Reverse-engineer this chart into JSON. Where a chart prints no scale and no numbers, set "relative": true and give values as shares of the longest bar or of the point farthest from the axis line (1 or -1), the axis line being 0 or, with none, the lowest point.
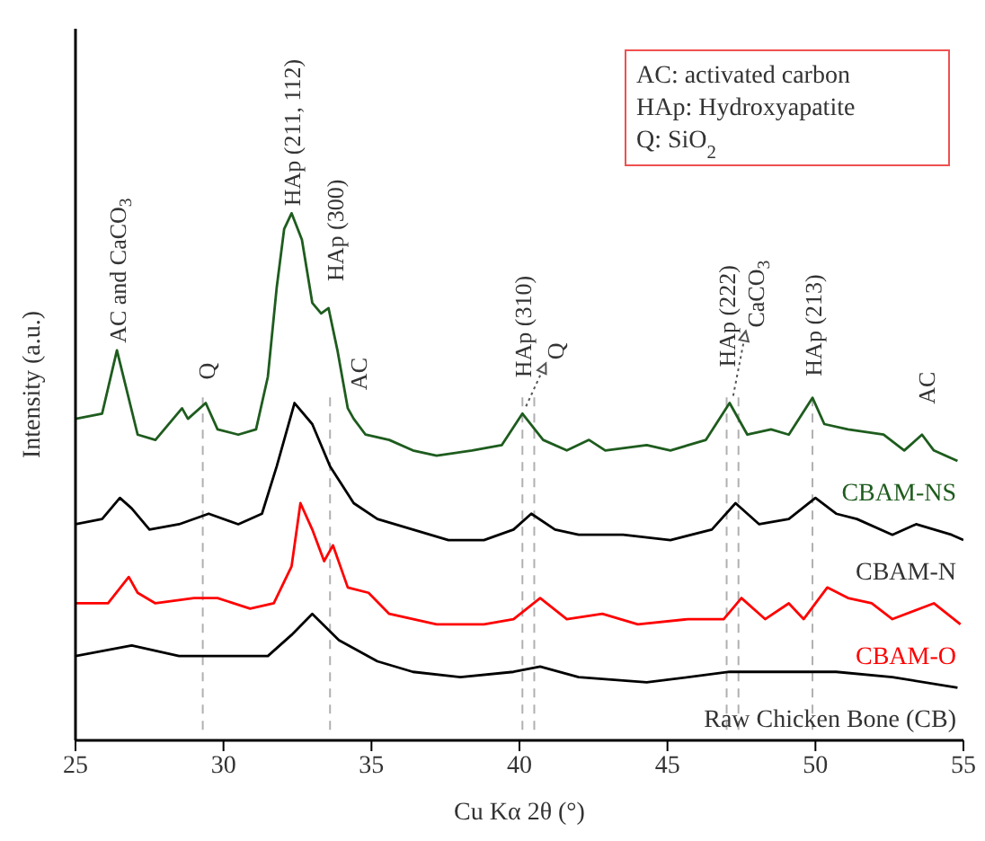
{
  "chart_data": {
    "type": "line",
    "relative": true,
    "xlabel": "Cu Kα 2θ (°)",
    "ylabel": "Intensity (a.u.)",
    "xlim": [
      25,
      55
    ],
    "xticks": [
      25,
      30,
      35,
      40,
      45,
      50,
      55
    ],
    "marker": "none",
    "line_style": "solid",
    "series": [
      {
        "name": "CBAM-NS",
        "color": "#1e5c1e",
        "x": [
          25,
          25.9,
          26.4,
          27.1,
          27.7,
          28.6,
          28.8,
          29.4,
          29.8,
          30.5,
          31.1,
          31.5,
          31.8,
          32.05,
          32.3,
          32.65,
          33.0,
          33.3,
          33.55,
          33.85,
          34.2,
          34.4,
          34.8,
          35.6,
          36.4,
          37.2,
          38.4,
          39.4,
          40.1,
          40.8,
          41.6,
          42.35,
          42.9,
          44.3,
          45.1,
          46.3,
          47.1,
          47.7,
          48.5,
          49.1,
          49.9,
          50.3,
          51.1,
          52.3,
          53.0,
          53.6,
          54.0,
          54.8
        ],
        "values": [
          0.61,
          0.62,
          0.74,
          0.58,
          0.57,
          0.63,
          0.61,
          0.64,
          0.59,
          0.58,
          0.59,
          0.69,
          0.86,
          0.97,
          1,
          0.95,
          0.83,
          0.81,
          0.82,
          0.74,
          0.63,
          0.61,
          0.58,
          0.57,
          0.55,
          0.54,
          0.55,
          0.56,
          0.62,
          0.57,
          0.55,
          0.57,
          0.55,
          0.56,
          0.55,
          0.57,
          0.64,
          0.58,
          0.59,
          0.58,
          0.65,
          0.6,
          0.59,
          0.58,
          0.55,
          0.58,
          0.55,
          0.53
        ]
      },
      {
        "name": "CBAM-N",
        "color": "#000000",
        "x": [
          25,
          25.9,
          26.5,
          26.9,
          27.5,
          28.5,
          29.5,
          30.5,
          31.3,
          31.8,
          32.4,
          33.0,
          33.6,
          34.4,
          35.2,
          36.4,
          37.6,
          38.8,
          39.8,
          40.4,
          41.2,
          42.0,
          43.5,
          45.1,
          46.5,
          47.3,
          48.1,
          49.1,
          50.0,
          50.7,
          51.4,
          52.6,
          53.4,
          54.6,
          55
        ],
        "values": [
          0.41,
          0.42,
          0.46,
          0.44,
          0.4,
          0.41,
          0.43,
          0.41,
          0.43,
          0.52,
          0.64,
          0.6,
          0.52,
          0.45,
          0.42,
          0.4,
          0.38,
          0.38,
          0.4,
          0.43,
          0.4,
          0.39,
          0.39,
          0.38,
          0.4,
          0.45,
          0.41,
          0.42,
          0.46,
          0.43,
          0.42,
          0.39,
          0.41,
          0.39,
          0.38
        ]
      },
      {
        "name": "CBAM-O",
        "color": "#ff0000",
        "x": [
          25,
          26.1,
          26.8,
          27.1,
          27.7,
          29.0,
          29.8,
          30.9,
          31.7,
          32.3,
          32.6,
          33.0,
          33.4,
          33.7,
          34.2,
          34.9,
          35.6,
          37.2,
          38.8,
          39.8,
          40.7,
          41.6,
          42.8,
          44.0,
          45.7,
          46.9,
          47.5,
          48.3,
          49.1,
          49.6,
          50.4,
          51.1,
          51.9,
          52.6,
          54.0,
          54.9
        ],
        "values": [
          0.26,
          0.26,
          0.31,
          0.28,
          0.26,
          0.27,
          0.27,
          0.25,
          0.26,
          0.33,
          0.45,
          0.4,
          0.34,
          0.37,
          0.29,
          0.28,
          0.24,
          0.22,
          0.22,
          0.23,
          0.27,
          0.23,
          0.24,
          0.22,
          0.23,
          0.23,
          0.27,
          0.23,
          0.26,
          0.23,
          0.29,
          0.27,
          0.26,
          0.23,
          0.26,
          0.22
        ]
      },
      {
        "name": "Raw Chicken Bone (CB)",
        "color": "#000000",
        "x": [
          25,
          26.9,
          28.5,
          30.5,
          31.5,
          32.3,
          33.0,
          33.9,
          35.2,
          36.4,
          38.0,
          39.8,
          40.7,
          42.0,
          44.3,
          47.1,
          49.9,
          50.7,
          52.6,
          54.8
        ],
        "values": [
          0.16,
          0.18,
          0.16,
          0.16,
          0.16,
          0.2,
          0.24,
          0.19,
          0.15,
          0.13,
          0.12,
          0.13,
          0.14,
          0.12,
          0.11,
          0.13,
          0.13,
          0.13,
          0.12,
          0.1
        ]
      }
    ],
    "ref_lines": [
      {
        "axis": "x",
        "value": 29.3,
        "color": "#b0b0b0",
        "line_style": "dashed"
      },
      {
        "axis": "x",
        "value": 33.6,
        "color": "#b0b0b0",
        "line_style": "dashed"
      },
      {
        "axis": "x",
        "value": 40.1,
        "color": "#b0b0b0",
        "line_style": "dashed"
      },
      {
        "axis": "x",
        "value": 40.5,
        "color": "#b0b0b0",
        "line_style": "dashed"
      },
      {
        "axis": "x",
        "value": 47.0,
        "color": "#b0b0b0",
        "line_style": "dashed"
      },
      {
        "axis": "x",
        "value": 47.4,
        "color": "#b0b0b0",
        "line_style": "dashed"
      },
      {
        "axis": "x",
        "value": 49.9,
        "color": "#b0b0b0",
        "line_style": "dashed"
      }
    ],
    "annotations": [
      {
        "text": "AC and CaCO$_{3}$",
        "x": 26.4,
        "y": 0.74
      },
      {
        "text": "Q",
        "x": 29.4,
        "y": 0.64
      },
      {
        "text": "HAp (211, 112)",
        "x": 32.3,
        "y": 1
      },
      {
        "text": "HAp (300)",
        "x": 33.55,
        "y": 0.82
      },
      {
        "text": "AC",
        "x": 34.4,
        "y": 0.61
      },
      {
        "text": "HAp (310)",
        "x": 40.1,
        "y": 0.62
      },
      {
        "text": "Q",
        "x": 40.1,
        "y": 0.62
      },
      {
        "text": "HAp (222)",
        "x": 47.1,
        "y": 0.64
      },
      {
        "text": "CaCO$_{3}$",
        "x": 47.1,
        "y": 0.64
      },
      {
        "text": "HAp (213)",
        "x": 49.9,
        "y": 0.65
      },
      {
        "text": "AC",
        "x": 53.6,
        "y": 0.58
      },
      "AC: activated carbon",
      "HAp: Hydroxyapatite",
      "Q: SiO$_{2}$"
    ]
  }
}
